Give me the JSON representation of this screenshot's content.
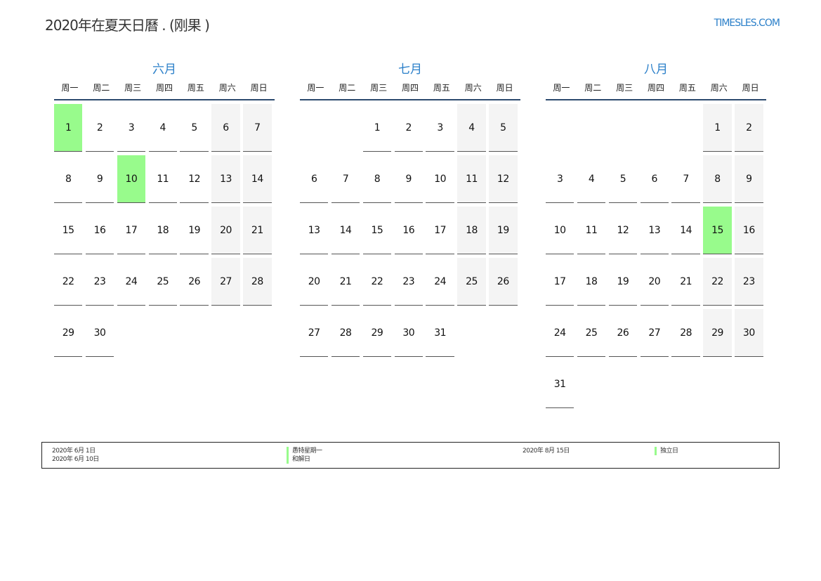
{
  "title": "2020年在夏天日曆 . (刚果 )",
  "logo": "TIMESLES.COM",
  "colors": {
    "accent": "#2a7fc9",
    "holiday": "#98fb8c",
    "weekend": "#f4f4f4",
    "rule": "#2c4a6e"
  },
  "weekdays": [
    "周一",
    "周二",
    "周三",
    "周四",
    "周五",
    "周六",
    "周日"
  ],
  "months": [
    {
      "name": "六月",
      "holidays": [
        1,
        10
      ],
      "weeks": [
        [
          1,
          2,
          3,
          4,
          5,
          6,
          7
        ],
        [
          8,
          9,
          10,
          11,
          12,
          13,
          14
        ],
        [
          15,
          16,
          17,
          18,
          19,
          20,
          21
        ],
        [
          22,
          23,
          24,
          25,
          26,
          27,
          28
        ],
        [
          29,
          30,
          null,
          null,
          null,
          null,
          null
        ]
      ]
    },
    {
      "name": "七月",
      "holidays": [],
      "weeks": [
        [
          null,
          null,
          1,
          2,
          3,
          4,
          5
        ],
        [
          6,
          7,
          8,
          9,
          10,
          11,
          12
        ],
        [
          13,
          14,
          15,
          16,
          17,
          18,
          19
        ],
        [
          20,
          21,
          22,
          23,
          24,
          25,
          26
        ],
        [
          27,
          28,
          29,
          30,
          31,
          null,
          null
        ]
      ]
    },
    {
      "name": "八月",
      "holidays": [
        15
      ],
      "weeks": [
        [
          null,
          null,
          null,
          null,
          null,
          1,
          2
        ],
        [
          3,
          4,
          5,
          6,
          7,
          8,
          9
        ],
        [
          10,
          11,
          12,
          13,
          14,
          15,
          16
        ],
        [
          17,
          18,
          19,
          20,
          21,
          22,
          23
        ],
        [
          24,
          25,
          26,
          27,
          28,
          29,
          30
        ],
        [
          31,
          null,
          null,
          null,
          null,
          null,
          null
        ]
      ]
    }
  ],
  "legend": {
    "col1_dates": [
      "2020年 6月 1日",
      "2020年 6月 10日"
    ],
    "col1_names": [
      "愚特星期一",
      "和解日"
    ],
    "col2_dates": [
      "2020年 8月 15日"
    ],
    "col2_names": [
      "独立日"
    ]
  }
}
